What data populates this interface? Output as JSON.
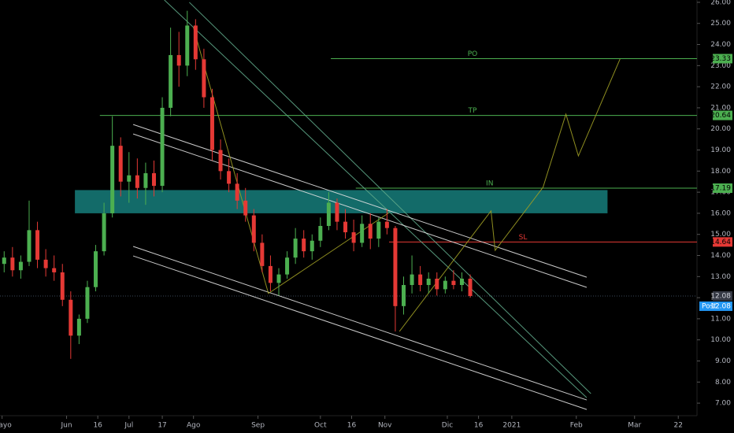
{
  "chart_data": {
    "type": "candlestick",
    "x": [
      "2020-05-02",
      "2020-05-06",
      "2020-05-10",
      "2020-05-14",
      "2020-05-18",
      "2020-05-22",
      "2020-05-26",
      "2020-05-30",
      "2020-06-03",
      "2020-06-07",
      "2020-06-11",
      "2020-06-15",
      "2020-06-19",
      "2020-06-23",
      "2020-06-27",
      "2020-07-01",
      "2020-07-05",
      "2020-07-09",
      "2020-07-13",
      "2020-07-17",
      "2020-07-21",
      "2020-07-25",
      "2020-07-29",
      "2020-08-02",
      "2020-08-06",
      "2020-08-10",
      "2020-08-14",
      "2020-08-18",
      "2020-08-22",
      "2020-08-26",
      "2020-08-30",
      "2020-09-03",
      "2020-09-07",
      "2020-09-11",
      "2020-09-15",
      "2020-09-19",
      "2020-09-23",
      "2020-09-27",
      "2020-10-01",
      "2020-10-05",
      "2020-10-09",
      "2020-10-13",
      "2020-10-17",
      "2020-10-21",
      "2020-10-25",
      "2020-10-29",
      "2020-11-02",
      "2020-11-06",
      "2020-11-10",
      "2020-11-14",
      "2020-11-18",
      "2020-11-22",
      "2020-11-26",
      "2020-11-30",
      "2020-12-04",
      "2020-12-08",
      "2020-12-12"
    ],
    "open": [
      13.6,
      13.9,
      13.3,
      13.7,
      15.2,
      13.8,
      13.4,
      13.2,
      11.9,
      10.2,
      11.0,
      12.5,
      14.2,
      16.0,
      19.2,
      17.5,
      17.8,
      17.2,
      17.9,
      17.3,
      21.0,
      23.5,
      23.0,
      24.9,
      23.3,
      21.5,
      19.0,
      18.0,
      17.4,
      16.6,
      15.9,
      14.6,
      13.5,
      12.7,
      13.1,
      13.9,
      14.8,
      14.2,
      14.7,
      15.4,
      16.5,
      15.6,
      15.1,
      14.6,
      15.5,
      14.8,
      15.6,
      15.3,
      11.6,
      12.6,
      13.1,
      12.6,
      12.9,
      12.4,
      12.8,
      12.6,
      12.9
    ],
    "high": [
      14.2,
      14.4,
      14.0,
      16.6,
      15.6,
      14.3,
      14.0,
      13.6,
      12.3,
      11.2,
      12.8,
      14.5,
      16.5,
      20.6,
      19.6,
      18.9,
      18.6,
      18.4,
      18.5,
      21.5,
      24.8,
      24.6,
      25.6,
      25.2,
      23.8,
      21.9,
      19.5,
      18.6,
      17.9,
      17.2,
      16.2,
      15.0,
      14.0,
      13.4,
      14.2,
      15.3,
      15.2,
      15.0,
      15.8,
      17.0,
      16.7,
      16.2,
      15.7,
      15.9,
      16.0,
      15.8,
      16.2,
      15.4,
      13.0,
      14.0,
      13.5,
      13.2,
      13.2,
      13.0,
      13.3,
      13.2,
      13.1
    ],
    "low": [
      13.2,
      13.0,
      12.9,
      13.5,
      13.4,
      13.0,
      12.8,
      11.6,
      9.1,
      9.8,
      10.8,
      12.3,
      14.0,
      15.8,
      16.8,
      16.5,
      16.7,
      16.4,
      16.8,
      17.0,
      20.6,
      22.0,
      22.5,
      22.8,
      21.0,
      18.5,
      17.6,
      17.0,
      16.2,
      15.6,
      14.2,
      13.2,
      12.3,
      12.1,
      12.9,
      13.6,
      13.9,
      13.8,
      14.4,
      15.2,
      15.2,
      14.8,
      14.2,
      14.4,
      14.3,
      14.4,
      15.0,
      10.4,
      11.2,
      12.2,
      12.3,
      12.2,
      12.1,
      12.2,
      12.4,
      12.3,
      12.0
    ],
    "close": [
      13.9,
      13.3,
      13.7,
      15.2,
      13.8,
      13.4,
      13.2,
      11.9,
      10.2,
      11.0,
      12.5,
      14.2,
      16.0,
      19.2,
      17.5,
      17.8,
      17.2,
      17.9,
      17.3,
      21.0,
      23.5,
      23.0,
      24.9,
      23.3,
      21.5,
      19.0,
      18.0,
      17.4,
      16.6,
      15.9,
      14.6,
      13.5,
      12.7,
      13.1,
      13.9,
      14.8,
      14.2,
      14.7,
      15.4,
      16.5,
      15.6,
      15.1,
      14.6,
      15.5,
      14.8,
      15.6,
      15.3,
      11.6,
      12.6,
      13.1,
      12.6,
      12.9,
      12.4,
      12.8,
      12.6,
      12.9,
      12.08
    ],
    "up_color": "#4caf50",
    "down_color": "#e53935",
    "xlim": [
      "2020-04-30",
      "2021-03-31"
    ],
    "xticks": [
      {
        "value": "2020-05-01",
        "label": "Mayo"
      },
      {
        "value": "2020-06-01",
        "label": "Jun"
      },
      {
        "value": "2020-06-16",
        "label": "16"
      },
      {
        "value": "2020-07-01",
        "label": "Jul"
      },
      {
        "value": "2020-07-17",
        "label": "17"
      },
      {
        "value": "2020-08-01",
        "label": "Ago"
      },
      {
        "value": "2020-09-01",
        "label": "Sep"
      },
      {
        "value": "2020-10-01",
        "label": "Oct"
      },
      {
        "value": "2020-10-16",
        "label": "16"
      },
      {
        "value": "2020-11-01",
        "label": "Nov"
      },
      {
        "value": "2020-12-01",
        "label": "Dic"
      },
      {
        "value": "2020-12-16",
        "label": "16"
      },
      {
        "value": "2021-01-01",
        "label": "2021"
      },
      {
        "value": "2021-02-01",
        "label": "Feb"
      },
      {
        "value": "2021-03-01",
        "label": "Mar"
      },
      {
        "value": "2021-03-22",
        "label": "22"
      }
    ],
    "ylim": [
      6.63,
      26.11
    ],
    "yticks": [
      {
        "value": 7,
        "label": "7.00"
      },
      {
        "value": 8,
        "label": "8.00"
      },
      {
        "value": 9,
        "label": "9.00"
      },
      {
        "value": 10,
        "label": "10.00"
      },
      {
        "value": 11,
        "label": "11.00"
      },
      {
        "value": 12,
        "label": "12.00"
      },
      {
        "value": 13,
        "label": "13.00"
      },
      {
        "value": 14,
        "label": "14.00"
      },
      {
        "value": 15,
        "label": "15.00"
      },
      {
        "value": 16,
        "label": "16.00"
      },
      {
        "value": 17,
        "label": "17.00"
      },
      {
        "value": 18,
        "label": "18.00"
      },
      {
        "value": 19,
        "label": "19.00"
      },
      {
        "value": 20,
        "label": "20.00"
      },
      {
        "value": 21,
        "label": "21.00"
      },
      {
        "value": 22,
        "label": "22.00"
      },
      {
        "value": 23,
        "label": "23.00"
      },
      {
        "value": 24,
        "label": "24.00"
      },
      {
        "value": 25,
        "label": "25.00"
      },
      {
        "value": 26,
        "label": "26.00"
      }
    ],
    "grid": false,
    "levels": [
      {
        "name": "PO",
        "value": 23.33,
        "color": "#4caf50",
        "start": "2020-10-06"
      },
      {
        "name": "TP",
        "value": 20.64,
        "color": "#4caf50",
        "start": "2020-06-17"
      },
      {
        "name": "IN",
        "value": 17.19,
        "color": "#4caf50",
        "start": "2020-10-18"
      },
      {
        "name": "SL",
        "value": 14.64,
        "color": "#e53935",
        "start": "2020-11-03"
      }
    ],
    "zone": {
      "from": "2020-06-05",
      "to": "2021-02-16",
      "low": 16.0,
      "high": 17.1,
      "color": "#1a8f8c"
    },
    "trend_lines": [
      {
        "color": "#5fa889",
        "x": [
          "2020-07-18",
          "2021-02-06"
        ],
        "y": [
          26.11,
          7.26
        ]
      },
      {
        "color": "#5fa889",
        "x": [
          "2020-07-30",
          "2021-02-08"
        ],
        "y": [
          26.0,
          7.45
        ]
      },
      {
        "color": "#e0e0e0",
        "x": [
          "2020-07-03",
          "2021-02-06"
        ],
        "y": [
          20.21,
          12.97
        ]
      },
      {
        "color": "#e0e0e0",
        "x": [
          "2020-07-03",
          "2021-02-06"
        ],
        "y": [
          19.76,
          12.49
        ]
      },
      {
        "color": "#e0e0e0",
        "x": [
          "2020-07-03",
          "2021-02-06"
        ],
        "y": [
          14.43,
          7.15
        ]
      },
      {
        "color": "#e0e0e0",
        "x": [
          "2020-07-03",
          "2021-02-06"
        ],
        "y": [
          13.98,
          6.7
        ]
      },
      {
        "color": "#9e9d24",
        "x": [
          "2020-08-01",
          "2020-09-06",
          "2020-11-03"
        ],
        "y": [
          24.8,
          12.2,
          16.03
        ]
      },
      {
        "color": "#9e9d24",
        "x": [
          "2020-11-08",
          "2020-12-22",
          "2020-12-24",
          "2021-01-16",
          "2021-01-27",
          "2021-02-02",
          "2021-02-22"
        ],
        "y": [
          10.4,
          16.11,
          14.24,
          17.23,
          20.7,
          18.72,
          23.31
        ]
      }
    ],
    "last_price": {
      "value": 12.08,
      "color": "#363a45"
    },
    "post_market": {
      "label": "Post",
      "value": 12.08,
      "color": "#2196f3"
    }
  }
}
